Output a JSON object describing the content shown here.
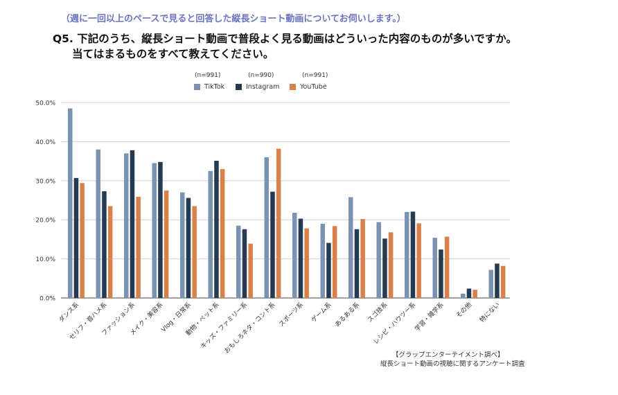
{
  "header": {
    "note": "（週に一回以上のペースで見ると回答した縦長ショート動画についてお伺いします。）",
    "question_line1": "Q5. 下記のうち、縦長ショート動画で普段よく見る動画はどういった内容のものが多いですか。",
    "question_line2": "当てはまるものをすべて教えてください。"
  },
  "legend": [
    {
      "n": "(n=991)",
      "label": "TikTok",
      "color": "#7a93b2"
    },
    {
      "n": "(n=990)",
      "label": "Instagram",
      "color": "#263a52"
    },
    {
      "n": "(n=991)",
      "label": "YouTube",
      "color": "#d9814a"
    }
  ],
  "source": {
    "line1": "【グラップエンターテイメント調べ】",
    "line2": "縦長ショート動画の視聴に関するアンケート調査"
  },
  "chart_data": {
    "type": "bar",
    "title": "",
    "xlabel": "",
    "ylabel": "",
    "ylim": [
      0,
      50
    ],
    "yticks": [
      "0.0%",
      "10.0%",
      "20.0%",
      "30.0%",
      "40.0%",
      "50.0%"
    ],
    "grid": true,
    "legend_position": "top-center",
    "categories": [
      "ダンス系",
      "セリフ・音ハメ系",
      "ファッション系",
      "メイク・美容系",
      "Vlog・日常系",
      "動物・ペット系",
      "キッズ・ファミリー系",
      "おもしろネタ・コント系",
      "スポーツ系",
      "ゲーム系",
      "あるある系",
      "スゴ技系",
      "レシピ・ハウツー系",
      "学習・雑学系",
      "その他",
      "特にない"
    ],
    "series": [
      {
        "name": "TikTok",
        "color": "#7a93b2",
        "values": [
          48.5,
          38.0,
          37.0,
          34.5,
          27.0,
          32.5,
          18.5,
          36.0,
          21.8,
          19.0,
          25.8,
          19.4,
          22.0,
          15.4,
          1.1,
          7.2
        ]
      },
      {
        "name": "Instagram",
        "color": "#263a52",
        "values": [
          30.7,
          27.3,
          37.8,
          34.8,
          25.6,
          35.1,
          17.6,
          27.2,
          20.3,
          14.1,
          17.6,
          15.2,
          22.1,
          12.4,
          2.4,
          8.8
        ]
      },
      {
        "name": "YouTube",
        "color": "#d9814a",
        "values": [
          29.4,
          23.5,
          25.9,
          27.5,
          23.5,
          33.0,
          13.9,
          38.2,
          17.8,
          18.4,
          20.2,
          16.8,
          19.1,
          15.7,
          2.1,
          8.2
        ]
      }
    ]
  }
}
